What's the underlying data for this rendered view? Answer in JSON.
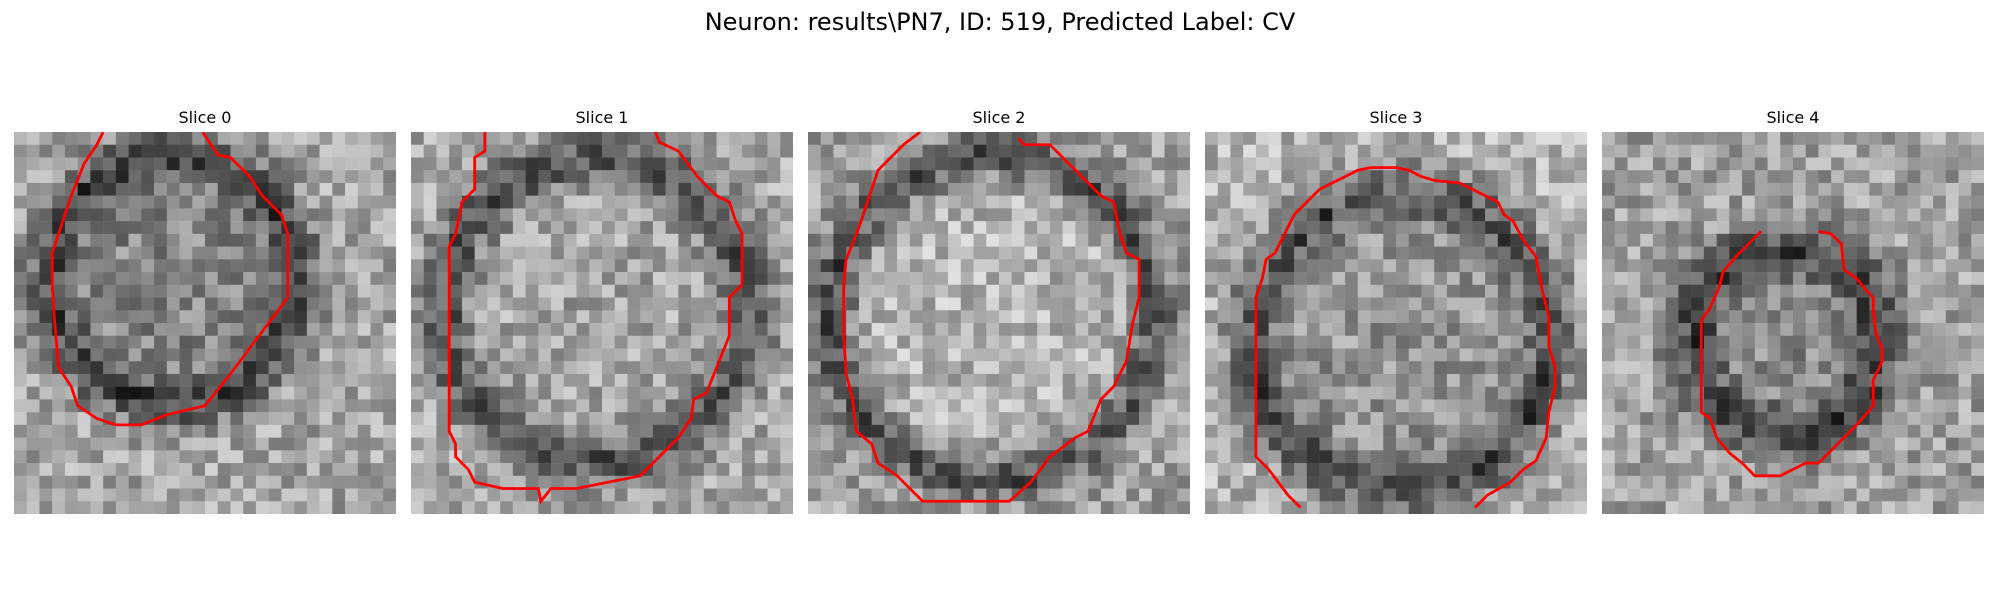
{
  "figure": {
    "title": "Neuron: results\\PN7, ID: 519, Predicted Label: CV"
  },
  "slices": [
    {
      "label": "Slice 0"
    },
    {
      "label": "Slice 1"
    },
    {
      "label": "Slice 2"
    },
    {
      "label": "Slice 3"
    },
    {
      "label": "Slice 4"
    }
  ],
  "colors": {
    "contour": "#ff0000",
    "background": "#ffffff"
  }
}
